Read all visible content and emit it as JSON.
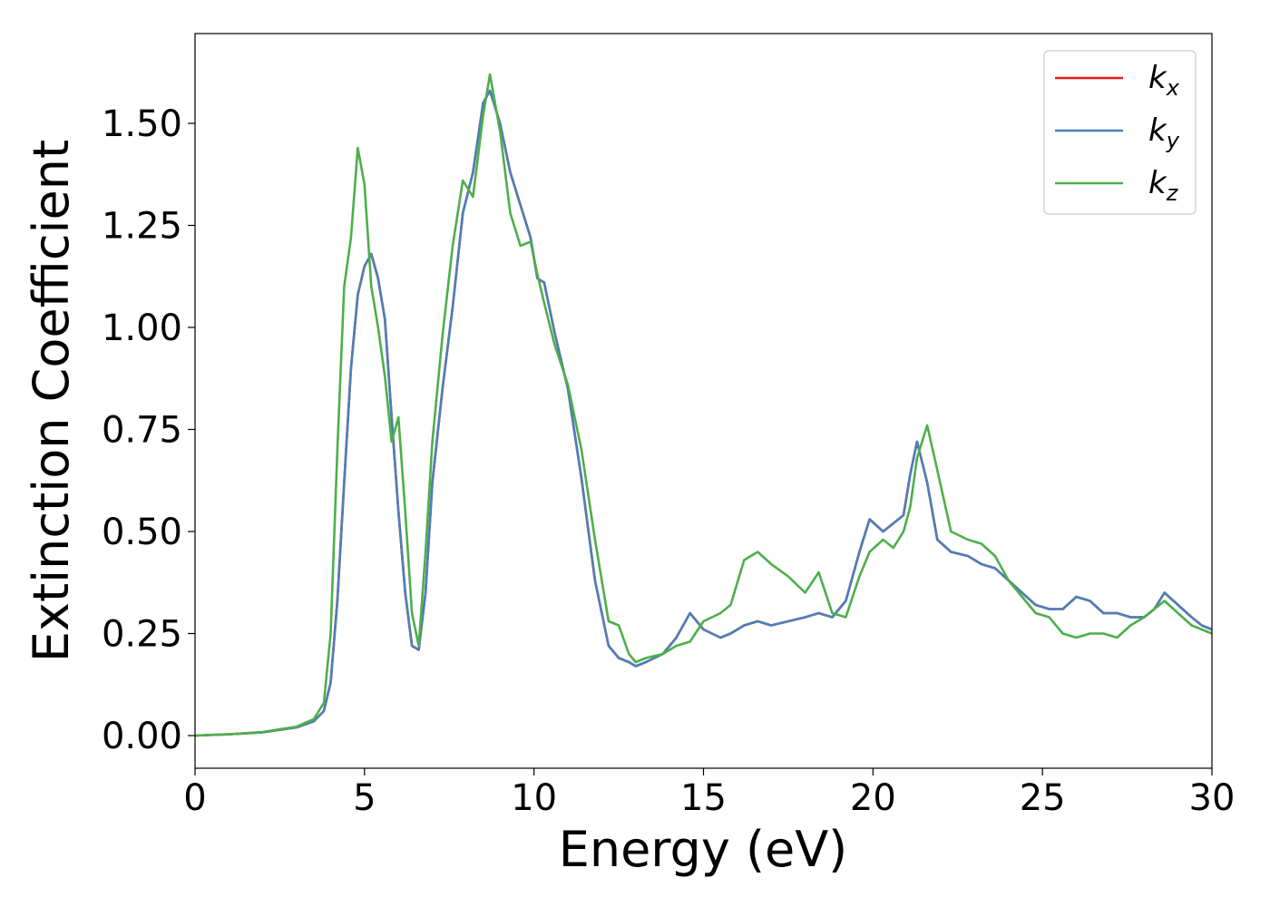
{
  "chart_data": {
    "type": "line",
    "xlabel": "Energy (eV)",
    "ylabel": "Extinction Coefficient",
    "xlim": [
      0,
      30
    ],
    "ylim": [
      -0.08,
      1.72
    ],
    "xticks": [
      0,
      5,
      10,
      15,
      20,
      25,
      30
    ],
    "xtick_labels": [
      "0",
      "5",
      "10",
      "15",
      "20",
      "25",
      "30"
    ],
    "yticks": [
      0.0,
      0.25,
      0.5,
      0.75,
      1.0,
      1.25,
      1.5
    ],
    "ytick_labels": [
      "0.00",
      "0.25",
      "0.50",
      "0.75",
      "1.00",
      "1.25",
      "1.50"
    ],
    "grid": false,
    "legend_position": "top-right",
    "series": [
      {
        "name": "k",
        "subscript": "x",
        "color": "#e41a1c",
        "x": [
          0,
          1,
          2,
          3,
          3.5,
          3.8,
          4.0,
          4.2,
          4.4,
          4.6,
          4.8,
          5.0,
          5.2,
          5.4,
          5.6,
          5.8,
          6.0,
          6.2,
          6.4,
          6.6,
          6.8,
          7.0,
          7.3,
          7.6,
          7.9,
          8.2,
          8.5,
          8.7,
          9.0,
          9.3,
          9.6,
          9.9,
          10.1,
          10.3,
          10.6,
          11.0,
          11.4,
          11.8,
          12.2,
          12.5,
          12.8,
          13.0,
          13.3,
          13.8,
          14.2,
          14.6,
          15.0,
          15.5,
          15.8,
          16.2,
          16.6,
          17.0,
          17.5,
          18.0,
          18.4,
          18.8,
          19.2,
          19.6,
          19.9,
          20.3,
          20.6,
          20.9,
          21.1,
          21.3,
          21.6,
          21.9,
          22.3,
          22.8,
          23.2,
          23.6,
          24.0,
          24.4,
          24.8,
          25.2,
          25.6,
          26.0,
          26.4,
          26.8,
          27.2,
          27.6,
          28.0,
          28.3,
          28.6,
          29.0,
          29.4,
          29.7,
          30.0
        ],
        "values": [
          0.0,
          0.003,
          0.008,
          0.02,
          0.035,
          0.06,
          0.13,
          0.33,
          0.62,
          0.9,
          1.08,
          1.15,
          1.18,
          1.12,
          1.02,
          0.78,
          0.55,
          0.35,
          0.22,
          0.21,
          0.35,
          0.62,
          0.85,
          1.05,
          1.28,
          1.38,
          1.55,
          1.58,
          1.5,
          1.38,
          1.3,
          1.22,
          1.12,
          1.11,
          0.99,
          0.85,
          0.63,
          0.38,
          0.22,
          0.19,
          0.18,
          0.17,
          0.18,
          0.2,
          0.24,
          0.3,
          0.26,
          0.24,
          0.25,
          0.27,
          0.28,
          0.27,
          0.28,
          0.29,
          0.3,
          0.29,
          0.33,
          0.45,
          0.53,
          0.5,
          0.52,
          0.54,
          0.64,
          0.72,
          0.62,
          0.48,
          0.45,
          0.44,
          0.42,
          0.41,
          0.38,
          0.35,
          0.32,
          0.31,
          0.31,
          0.34,
          0.33,
          0.3,
          0.3,
          0.29,
          0.29,
          0.31,
          0.35,
          0.32,
          0.29,
          0.27,
          0.26
        ]
      },
      {
        "name": "k",
        "subscript": "y",
        "color": "#4c7fb8",
        "x": [
          0,
          1,
          2,
          3,
          3.5,
          3.8,
          4.0,
          4.2,
          4.4,
          4.6,
          4.8,
          5.0,
          5.2,
          5.4,
          5.6,
          5.8,
          6.0,
          6.2,
          6.4,
          6.6,
          6.8,
          7.0,
          7.3,
          7.6,
          7.9,
          8.2,
          8.5,
          8.7,
          9.0,
          9.3,
          9.6,
          9.9,
          10.1,
          10.3,
          10.6,
          11.0,
          11.4,
          11.8,
          12.2,
          12.5,
          12.8,
          13.0,
          13.3,
          13.8,
          14.2,
          14.6,
          15.0,
          15.5,
          15.8,
          16.2,
          16.6,
          17.0,
          17.5,
          18.0,
          18.4,
          18.8,
          19.2,
          19.6,
          19.9,
          20.3,
          20.6,
          20.9,
          21.1,
          21.3,
          21.6,
          21.9,
          22.3,
          22.8,
          23.2,
          23.6,
          24.0,
          24.4,
          24.8,
          25.2,
          25.6,
          26.0,
          26.4,
          26.8,
          27.2,
          27.6,
          28.0,
          28.3,
          28.6,
          29.0,
          29.4,
          29.7,
          30.0
        ],
        "values": [
          0.0,
          0.003,
          0.008,
          0.02,
          0.035,
          0.06,
          0.13,
          0.33,
          0.62,
          0.9,
          1.08,
          1.15,
          1.18,
          1.12,
          1.02,
          0.78,
          0.55,
          0.35,
          0.22,
          0.21,
          0.35,
          0.62,
          0.85,
          1.05,
          1.28,
          1.38,
          1.55,
          1.58,
          1.5,
          1.38,
          1.3,
          1.22,
          1.12,
          1.11,
          0.99,
          0.85,
          0.63,
          0.38,
          0.22,
          0.19,
          0.18,
          0.17,
          0.18,
          0.2,
          0.24,
          0.3,
          0.26,
          0.24,
          0.25,
          0.27,
          0.28,
          0.27,
          0.28,
          0.29,
          0.3,
          0.29,
          0.33,
          0.45,
          0.53,
          0.5,
          0.52,
          0.54,
          0.64,
          0.72,
          0.62,
          0.48,
          0.45,
          0.44,
          0.42,
          0.41,
          0.38,
          0.35,
          0.32,
          0.31,
          0.31,
          0.34,
          0.33,
          0.3,
          0.3,
          0.29,
          0.29,
          0.31,
          0.35,
          0.32,
          0.29,
          0.27,
          0.26
        ]
      },
      {
        "name": "k",
        "subscript": "z",
        "color": "#4daf4a",
        "x": [
          0,
          1,
          2,
          3,
          3.5,
          3.8,
          4.0,
          4.2,
          4.4,
          4.6,
          4.8,
          5.0,
          5.2,
          5.4,
          5.6,
          5.8,
          6.0,
          6.2,
          6.4,
          6.6,
          6.8,
          7.0,
          7.3,
          7.6,
          7.9,
          8.2,
          8.5,
          8.7,
          9.0,
          9.3,
          9.6,
          9.9,
          10.1,
          10.3,
          10.6,
          11.0,
          11.4,
          11.8,
          12.2,
          12.5,
          12.8,
          13.0,
          13.3,
          13.8,
          14.2,
          14.6,
          15.0,
          15.5,
          15.8,
          16.2,
          16.6,
          17.0,
          17.5,
          18.0,
          18.4,
          18.8,
          19.2,
          19.6,
          19.9,
          20.3,
          20.6,
          20.9,
          21.1,
          21.3,
          21.6,
          21.9,
          22.3,
          22.8,
          23.2,
          23.6,
          24.0,
          24.4,
          24.8,
          25.2,
          25.6,
          26.0,
          26.4,
          26.8,
          27.2,
          27.6,
          28.0,
          28.3,
          28.6,
          29.0,
          29.4,
          29.7,
          30.0
        ],
        "values": [
          0.0,
          0.003,
          0.009,
          0.022,
          0.04,
          0.08,
          0.25,
          0.7,
          1.1,
          1.22,
          1.44,
          1.35,
          1.1,
          1.0,
          0.88,
          0.72,
          0.78,
          0.55,
          0.3,
          0.22,
          0.45,
          0.72,
          0.98,
          1.2,
          1.36,
          1.32,
          1.52,
          1.62,
          1.48,
          1.28,
          1.2,
          1.21,
          1.13,
          1.06,
          0.96,
          0.86,
          0.7,
          0.48,
          0.28,
          0.27,
          0.2,
          0.18,
          0.19,
          0.2,
          0.22,
          0.23,
          0.28,
          0.3,
          0.32,
          0.43,
          0.45,
          0.42,
          0.39,
          0.35,
          0.4,
          0.3,
          0.29,
          0.39,
          0.45,
          0.48,
          0.46,
          0.5,
          0.56,
          0.68,
          0.76,
          0.65,
          0.5,
          0.48,
          0.47,
          0.44,
          0.38,
          0.34,
          0.3,
          0.29,
          0.25,
          0.24,
          0.25,
          0.25,
          0.24,
          0.27,
          0.29,
          0.31,
          0.33,
          0.3,
          0.27,
          0.26,
          0.25
        ]
      }
    ]
  }
}
